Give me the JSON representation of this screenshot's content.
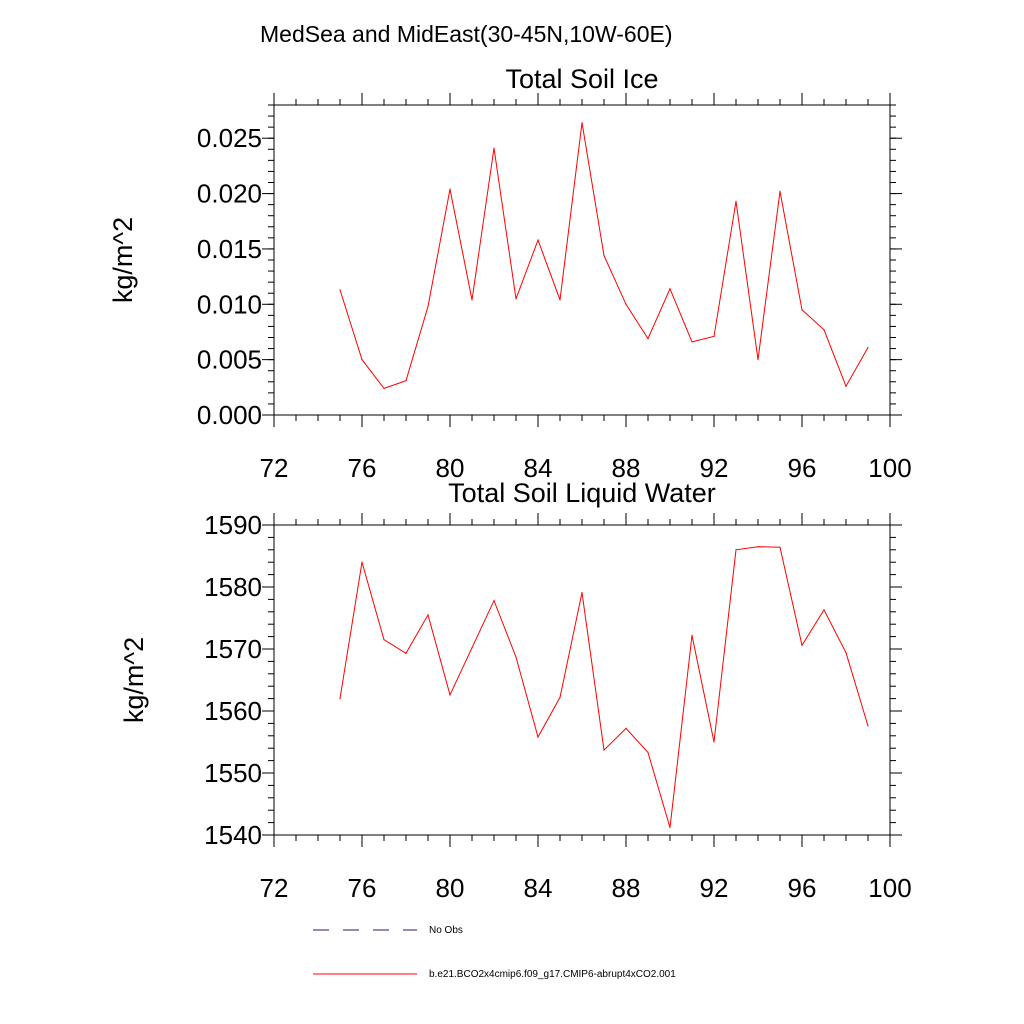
{
  "main_title": "MedSea and MidEast(30-45N,10W-60E)",
  "colors": {
    "model_line": "#ff0000",
    "obs_line": "#1a1a6e",
    "axes": "#000000"
  },
  "legend": {
    "items": [
      {
        "label": "No Obs",
        "style": "dashed",
        "color": "#1a1a6e"
      },
      {
        "label": "b.e21.BCO2x4cmip6.f09_g17.CMIP6-abrupt4xCO2.001",
        "style": "solid",
        "color": "#ff0000"
      }
    ]
  },
  "chart_data": [
    {
      "type": "line",
      "title": "Total Soil Ice",
      "xlabel": "",
      "ylabel": "kg/m^2",
      "xlim": [
        72,
        100
      ],
      "ylim": [
        0,
        0.028
      ],
      "x_ticks": [
        72,
        76,
        80,
        84,
        88,
        92,
        96,
        100
      ],
      "y_ticks": [
        0,
        0.005,
        0.01,
        0.015,
        0.02,
        0.025
      ],
      "y_tick_labels": [
        "0.000",
        "0.005",
        "0.010",
        "0.015",
        "0.020",
        "0.025"
      ],
      "grid": false,
      "series": [
        {
          "x": [
            75,
            76,
            77,
            78,
            79,
            80,
            81,
            82,
            83,
            84,
            85,
            86,
            87,
            88,
            89,
            90,
            91,
            92,
            93,
            94,
            95,
            96,
            97,
            98,
            99
          ],
          "values": [
            0.0113,
            0.005,
            0.0024,
            0.0031,
            0.0098,
            0.0204,
            0.0104,
            0.0241,
            0.0105,
            0.0158,
            0.0104,
            0.0264,
            0.0144,
            0.01,
            0.0069,
            0.0114,
            0.0066,
            0.0071,
            0.0193,
            0.005,
            0.0202,
            0.0095,
            0.0077,
            0.0026,
            0.0061
          ]
        }
      ]
    },
    {
      "type": "line",
      "title": "Total Soil Liquid Water",
      "xlabel": "",
      "ylabel": "kg/m^2",
      "xlim": [
        72,
        100
      ],
      "ylim": [
        1540,
        1590
      ],
      "x_ticks": [
        72,
        76,
        80,
        84,
        88,
        92,
        96,
        100
      ],
      "y_ticks": [
        1540,
        1550,
        1560,
        1570,
        1580,
        1590
      ],
      "y_tick_labels": [
        "1540",
        "1550",
        "1560",
        "1570",
        "1580",
        "1590"
      ],
      "grid": false,
      "series": [
        {
          "x": [
            75,
            76,
            77,
            78,
            79,
            80,
            81,
            82,
            83,
            84,
            85,
            86,
            87,
            88,
            89,
            90,
            91,
            92,
            93,
            94,
            95,
            96,
            97,
            98,
            99
          ],
          "values": [
            1562.0,
            1584.0,
            1571.5,
            1569.3,
            1575.5,
            1562.6,
            1570.2,
            1577.8,
            1568.7,
            1555.8,
            1562.2,
            1579.1,
            1553.7,
            1557.2,
            1553.3,
            1541.2,
            1572.2,
            1555.0,
            1586.0,
            1586.5,
            1586.4,
            1570.6,
            1576.3,
            1569.4,
            1557.6
          ]
        }
      ]
    }
  ]
}
